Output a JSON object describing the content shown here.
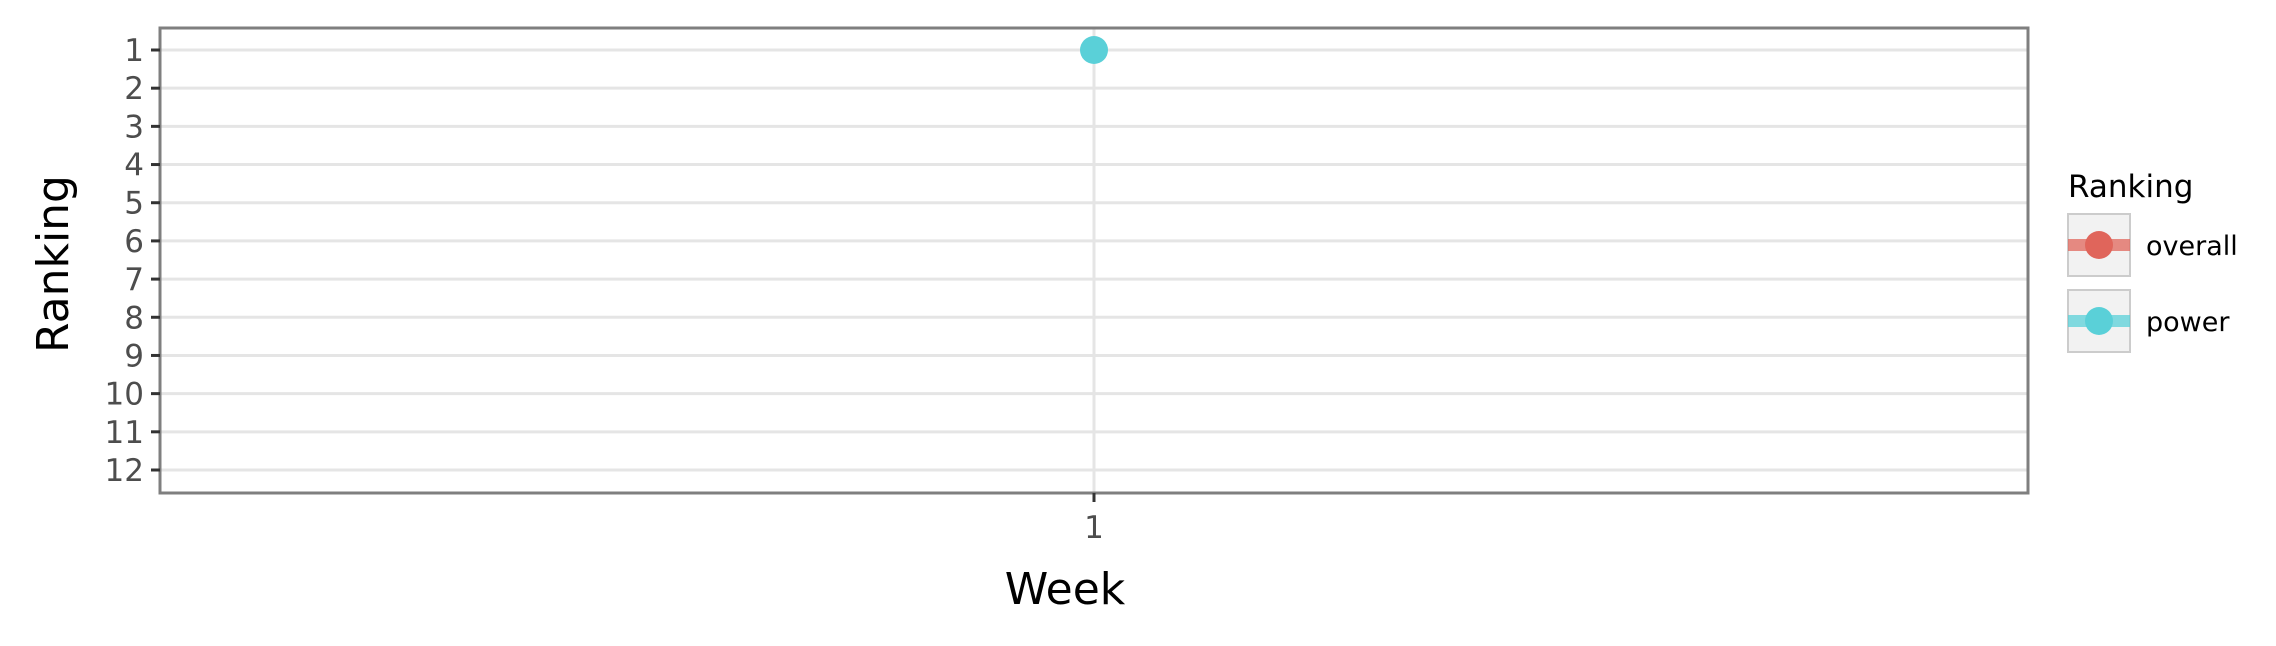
{
  "chart_data": {
    "type": "line",
    "xlabel": "Week",
    "ylabel": "Ranking",
    "x_categories": [
      "1"
    ],
    "y_reversed": true,
    "ylim": [
      1,
      12
    ],
    "y_ticks": [
      "1",
      "2",
      "3",
      "4",
      "5",
      "6",
      "7",
      "8",
      "9",
      "10",
      "11",
      "12"
    ],
    "grid": true,
    "legend": {
      "title": "Ranking",
      "position": "right",
      "entries": [
        "overall",
        "power"
      ]
    },
    "series": [
      {
        "name": "overall",
        "color": "#e0655b",
        "points": []
      },
      {
        "name": "power",
        "color": "#5ad0d8",
        "points": [
          {
            "x": "1",
            "y": 1
          }
        ]
      }
    ]
  }
}
